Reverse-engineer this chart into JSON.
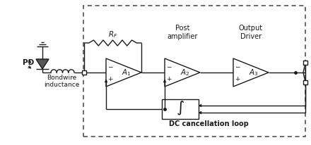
{
  "bg_color": "#ffffff",
  "line_color": "#1a1a1a",
  "labels": {
    "bondwire": "Bondwire\ninductance",
    "PD": "PD",
    "RF": "$R_F$",
    "post_amp": "Post\namplifier",
    "output_driver": "Output\nDriver",
    "dc_loop": "DC cancellation loop",
    "A1": "$A_1$",
    "A2": "$A_2$",
    "A3": "$A_3$"
  },
  "layout": {
    "fig_w": 4.4,
    "fig_h": 2.06,
    "dpi": 100,
    "xmax": 440,
    "ymax": 206
  }
}
